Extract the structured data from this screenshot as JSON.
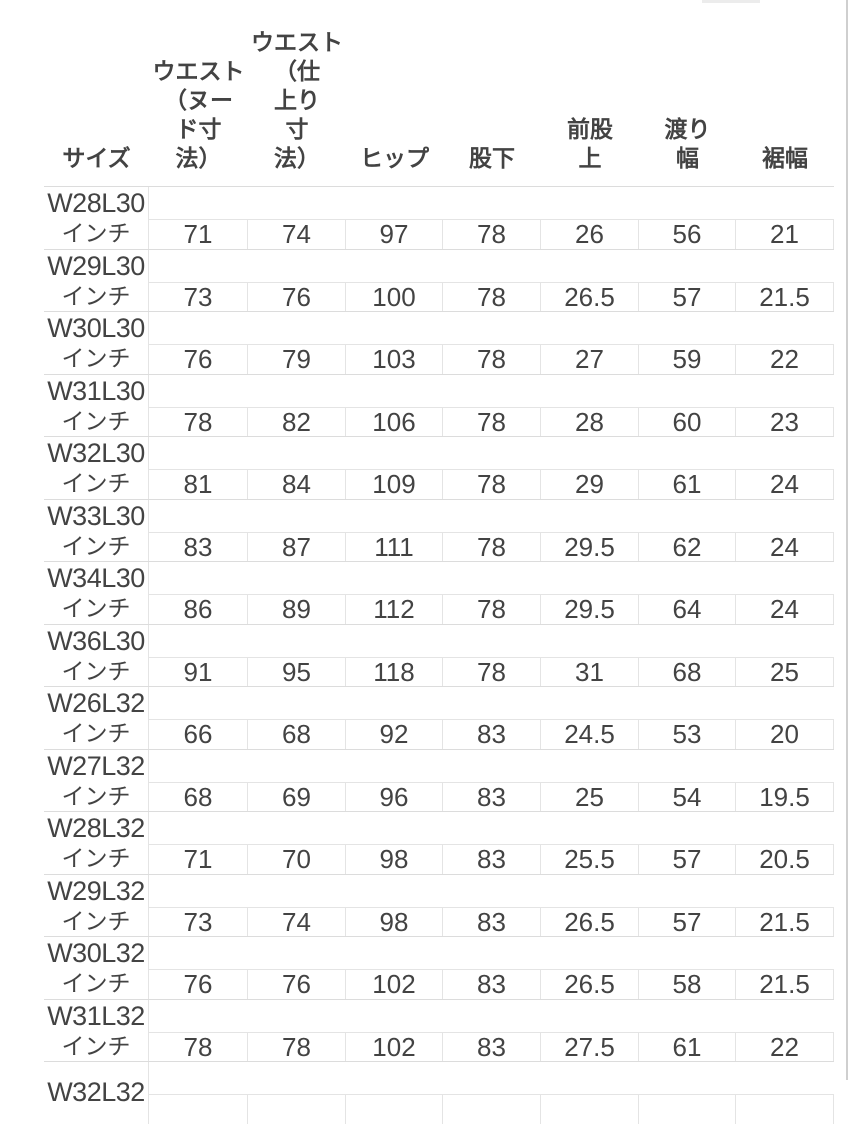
{
  "table": {
    "columns": [
      {
        "label": "サイズ"
      },
      {
        "label": "ウエスト\n（ヌー\nド寸\n法）"
      },
      {
        "label": "ウエスト\n（仕\n上り\n寸\n法）"
      },
      {
        "label": "ヒップ"
      },
      {
        "label": "股下"
      },
      {
        "label": "前股\n上"
      },
      {
        "label": "渡り\n幅"
      },
      {
        "label": "裾幅"
      }
    ],
    "rows": [
      {
        "size": "W28L30",
        "unit": "インチ",
        "values": [
          "71",
          "74",
          "97",
          "78",
          "26",
          "56",
          "21"
        ]
      },
      {
        "size": "W29L30",
        "unit": "インチ",
        "values": [
          "73",
          "76",
          "100",
          "78",
          "26.5",
          "57",
          "21.5"
        ]
      },
      {
        "size": "W30L30",
        "unit": "インチ",
        "values": [
          "76",
          "79",
          "103",
          "78",
          "27",
          "59",
          "22"
        ]
      },
      {
        "size": "W31L30",
        "unit": "インチ",
        "values": [
          "78",
          "82",
          "106",
          "78",
          "28",
          "60",
          "23"
        ]
      },
      {
        "size": "W32L30",
        "unit": "インチ",
        "values": [
          "81",
          "84",
          "109",
          "78",
          "29",
          "61",
          "24"
        ]
      },
      {
        "size": "W33L30",
        "unit": "インチ",
        "values": [
          "83",
          "87",
          "111",
          "78",
          "29.5",
          "62",
          "24"
        ]
      },
      {
        "size": "W34L30",
        "unit": "インチ",
        "values": [
          "86",
          "89",
          "112",
          "78",
          "29.5",
          "64",
          "24"
        ]
      },
      {
        "size": "W36L30",
        "unit": "インチ",
        "values": [
          "91",
          "95",
          "118",
          "78",
          "31",
          "68",
          "25"
        ]
      },
      {
        "size": "W26L32",
        "unit": "インチ",
        "values": [
          "66",
          "68",
          "92",
          "83",
          "24.5",
          "53",
          "20"
        ]
      },
      {
        "size": "W27L32",
        "unit": "インチ",
        "values": [
          "68",
          "69",
          "96",
          "83",
          "25",
          "54",
          "19.5"
        ]
      },
      {
        "size": "W28L32",
        "unit": "インチ",
        "values": [
          "71",
          "70",
          "98",
          "83",
          "25.5",
          "57",
          "20.5"
        ]
      },
      {
        "size": "W29L32",
        "unit": "インチ",
        "values": [
          "73",
          "74",
          "98",
          "83",
          "26.5",
          "57",
          "21.5"
        ]
      },
      {
        "size": "W30L32",
        "unit": "インチ",
        "values": [
          "76",
          "76",
          "102",
          "83",
          "26.5",
          "58",
          "21.5"
        ]
      },
      {
        "size": "W31L32",
        "unit": "インチ",
        "values": [
          "78",
          "78",
          "102",
          "83",
          "27.5",
          "61",
          "22"
        ]
      },
      {
        "size": "W32L32",
        "unit": "",
        "values": [
          "",
          "",
          "",
          "",
          "",
          "",
          ""
        ]
      }
    ]
  },
  "colors": {
    "page_bg": "#ffffff",
    "text": "#434343",
    "border_separator": "#dcdcdc",
    "border_cell": "#e4e4e4",
    "edge_line": "#cfcfcf",
    "artifact": "#ececec"
  }
}
